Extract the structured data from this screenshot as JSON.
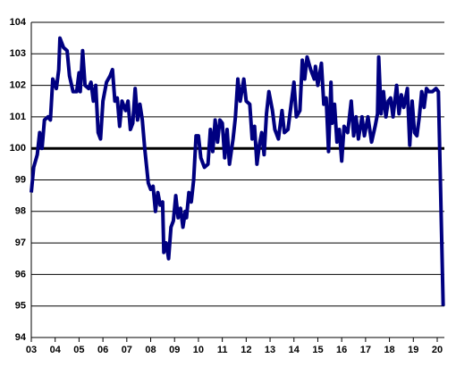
{
  "chart_data": {
    "type": "line",
    "x": [
      2003.0,
      2003.1,
      2003.25,
      2003.35,
      2003.45,
      2003.55,
      2003.7,
      2003.8,
      2003.9,
      2004.05,
      2004.15,
      2004.2,
      2004.35,
      2004.5,
      2004.6,
      2004.75,
      2004.9,
      2005.0,
      2005.05,
      2005.15,
      2005.25,
      2005.4,
      2005.5,
      2005.6,
      2005.7,
      2005.8,
      2005.9,
      2006.0,
      2006.15,
      2006.3,
      2006.4,
      2006.5,
      2006.6,
      2006.7,
      2006.8,
      2006.95,
      2007.05,
      2007.15,
      2007.25,
      2007.35,
      2007.45,
      2007.55,
      2007.65,
      2007.75,
      2007.9,
      2008.0,
      2008.1,
      2008.2,
      2008.3,
      2008.4,
      2008.5,
      2008.55,
      2008.65,
      2008.75,
      2008.85,
      2008.95,
      2009.05,
      2009.15,
      2009.25,
      2009.35,
      2009.45,
      2009.5,
      2009.6,
      2009.7,
      2009.8,
      2009.9,
      2010.0,
      2010.1,
      2010.25,
      2010.4,
      2010.5,
      2010.6,
      2010.7,
      2010.8,
      2010.9,
      2011.0,
      2011.1,
      2011.2,
      2011.3,
      2011.45,
      2011.55,
      2011.65,
      2011.75,
      2011.9,
      2012.0,
      2012.15,
      2012.25,
      2012.35,
      2012.45,
      2012.55,
      2012.65,
      2012.75,
      2012.85,
      2012.95,
      2013.1,
      2013.2,
      2013.35,
      2013.5,
      2013.6,
      2013.75,
      2013.9,
      2014.0,
      2014.1,
      2014.25,
      2014.35,
      2014.45,
      2014.55,
      2014.7,
      2014.85,
      2014.9,
      2015.0,
      2015.15,
      2015.25,
      2015.35,
      2015.45,
      2015.55,
      2015.6,
      2015.7,
      2015.8,
      2015.9,
      2016.0,
      2016.1,
      2016.25,
      2016.4,
      2016.5,
      2016.6,
      2016.7,
      2016.85,
      2016.95,
      2017.1,
      2017.25,
      2017.4,
      2017.5,
      2017.55,
      2017.65,
      2017.75,
      2017.85,
      2017.95,
      2018.05,
      2018.15,
      2018.3,
      2018.4,
      2018.5,
      2018.6,
      2018.75,
      2018.85,
      2018.95,
      2019.05,
      2019.15,
      2019.25,
      2019.35,
      2019.45,
      2019.55,
      2019.65,
      2019.8,
      2019.95,
      2020.05,
      2020.25
    ],
    "series": [
      {
        "color": "#000080",
        "values": [
          98.6,
          99.4,
          99.8,
          100.5,
          100.0,
          100.9,
          101.0,
          100.9,
          102.2,
          101.9,
          102.5,
          103.5,
          103.2,
          103.1,
          102.3,
          101.8,
          101.8,
          102.4,
          101.8,
          103.1,
          102.0,
          101.9,
          102.1,
          101.5,
          102.0,
          100.5,
          100.3,
          101.5,
          102.1,
          102.3,
          102.5,
          101.5,
          101.6,
          100.7,
          101.5,
          101.2,
          101.5,
          100.6,
          100.8,
          101.9,
          100.9,
          101.4,
          100.9,
          100.0,
          98.9,
          98.7,
          98.8,
          98.0,
          98.6,
          98.2,
          98.3,
          96.7,
          97.0,
          96.5,
          97.5,
          97.7,
          98.5,
          97.8,
          98.1,
          97.5,
          98.0,
          97.8,
          98.6,
          98.3,
          99.0,
          100.4,
          100.4,
          99.7,
          99.4,
          99.5,
          100.6,
          99.9,
          100.9,
          100.2,
          100.9,
          100.8,
          99.7,
          100.6,
          99.5,
          100.3,
          101.0,
          102.2,
          101.5,
          102.2,
          101.5,
          101.4,
          100.3,
          100.7,
          99.5,
          100.1,
          100.5,
          99.8,
          101.1,
          101.8,
          101.2,
          100.6,
          100.3,
          101.2,
          100.5,
          100.6,
          101.5,
          102.1,
          101.0,
          101.2,
          102.8,
          102.2,
          102.9,
          102.5,
          102.2,
          102.6,
          102.0,
          102.7,
          101.4,
          101.6,
          99.9,
          102.1,
          100.8,
          101.4,
          100.2,
          100.6,
          99.6,
          100.7,
          100.5,
          101.5,
          100.4,
          101.0,
          100.3,
          101.0,
          100.4,
          101.0,
          100.2,
          100.7,
          101.1,
          102.9,
          101.1,
          101.8,
          101.0,
          101.5,
          101.6,
          101.0,
          102.0,
          101.1,
          101.7,
          101.3,
          101.9,
          100.1,
          101.5,
          100.5,
          100.4,
          101.0,
          101.8,
          101.3,
          101.9,
          101.8,
          101.8,
          101.9,
          101.8,
          95.0
        ]
      }
    ],
    "xlim": [
      2003,
      2020.3
    ],
    "xticks": [
      {
        "value": 2003,
        "label": "03"
      },
      {
        "value": 2004,
        "label": "04"
      },
      {
        "value": 2005,
        "label": "05"
      },
      {
        "value": 2006,
        "label": "06"
      },
      {
        "value": 2007,
        "label": "07"
      },
      {
        "value": 2008,
        "label": "08"
      },
      {
        "value": 2009,
        "label": "09"
      },
      {
        "value": 2010,
        "label": "10"
      },
      {
        "value": 2011,
        "label": "11"
      },
      {
        "value": 2012,
        "label": "12"
      },
      {
        "value": 2013,
        "label": "13"
      },
      {
        "value": 2014,
        "label": "14"
      },
      {
        "value": 2015,
        "label": "15"
      },
      {
        "value": 2016,
        "label": "16"
      },
      {
        "value": 2017,
        "label": "17"
      },
      {
        "value": 2018,
        "label": "18"
      },
      {
        "value": 2019,
        "label": "19"
      },
      {
        "value": 2020,
        "label": "20"
      }
    ],
    "ylim": [
      94,
      104
    ],
    "yticks": [
      94,
      95,
      96,
      97,
      98,
      99,
      100,
      101,
      102,
      103,
      104
    ],
    "reference_line": 100,
    "grid": true
  }
}
